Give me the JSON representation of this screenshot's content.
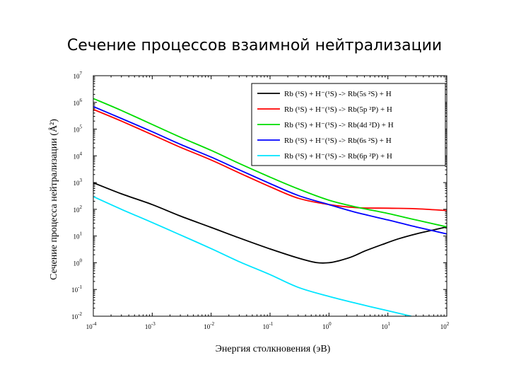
{
  "slide": {
    "title": "Сечение процессов взаимной нейтрализации"
  },
  "chart_data": {
    "type": "line",
    "xlabel": "Энергия столкновения (эВ)",
    "ylabel": "Сечение процесса нейтрализации (Å²)",
    "x_scale": "log",
    "y_scale": "log",
    "xlim": [
      0.0001,
      100
    ],
    "ylim": [
      0.01,
      10000000
    ],
    "x_ticks": [
      {
        "value": 0.0001,
        "mant": "10",
        "exp": "-4"
      },
      {
        "value": 0.001,
        "mant": "10",
        "exp": "-3"
      },
      {
        "value": 0.01,
        "mant": "10",
        "exp": "-2"
      },
      {
        "value": 0.1,
        "mant": "10",
        "exp": "-1"
      },
      {
        "value": 1,
        "mant": "10",
        "exp": "0"
      },
      {
        "value": 10,
        "mant": "10",
        "exp": "1"
      },
      {
        "value": 100,
        "mant": "10",
        "exp": "2"
      }
    ],
    "y_ticks": [
      {
        "value": 0.01,
        "mant": "10",
        "exp": "-2"
      },
      {
        "value": 0.1,
        "mant": "10",
        "exp": "-1"
      },
      {
        "value": 1,
        "mant": "10",
        "exp": "0"
      },
      {
        "value": 10,
        "mant": "10",
        "exp": "1"
      },
      {
        "value": 100,
        "mant": "10",
        "exp": "2"
      },
      {
        "value": 1000,
        "mant": "10",
        "exp": "3"
      },
      {
        "value": 10000,
        "mant": "10",
        "exp": "4"
      },
      {
        "value": 100000,
        "mant": "10",
        "exp": "5"
      },
      {
        "value": 1000000,
        "mant": "10",
        "exp": "6"
      },
      {
        "value": 10000000,
        "mant": "10",
        "exp": "7"
      }
    ],
    "legend_position": "top-right",
    "series": [
      {
        "name": "Rb (¹S) + H⁻(¹S) -> Rb(5s ²S) + H",
        "color": "#000000",
        "x": [
          0.0001,
          0.0003,
          0.001,
          0.003,
          0.01,
          0.03,
          0.1,
          0.3,
          0.6,
          1,
          1.5,
          2.5,
          4,
          8,
          15,
          30,
          60,
          100
        ],
        "y": [
          990,
          380,
          150,
          56,
          21,
          8.5,
          3.3,
          1.5,
          1.02,
          1.0,
          1.2,
          1.7,
          2.7,
          4.8,
          7.8,
          12,
          17,
          22
        ]
      },
      {
        "name": "Rb (¹S) + H⁻(¹S) -> Rb(5p ²P) + H",
        "color": "#ff0000",
        "x": [
          0.0001,
          0.0003,
          0.001,
          0.003,
          0.01,
          0.03,
          0.1,
          0.3,
          1,
          3,
          10,
          30,
          100
        ],
        "y": [
          550000,
          200000,
          62000,
          21000,
          7000,
          2300,
          700,
          260,
          150,
          115,
          110,
          105,
          90
        ]
      },
      {
        "name": "Rb (¹S) + H⁻(¹S) -> Rb(4d ²D) + H",
        "color": "#00dd00",
        "x": [
          0.0001,
          0.0003,
          0.001,
          0.003,
          0.01,
          0.03,
          0.1,
          0.3,
          1,
          3,
          10,
          30,
          100
        ],
        "y": [
          1400000,
          500000,
          150000,
          50000,
          16000,
          5200,
          1600,
          580,
          220,
          120,
          70,
          40,
          22
        ]
      },
      {
        "name": "Rb (¹S) + H⁻(¹S) -> Rb(6s ²S) + H",
        "color": "#0000ff",
        "x": [
          0.0001,
          0.0003,
          0.001,
          0.003,
          0.01,
          0.03,
          0.1,
          0.3,
          1,
          3,
          10,
          30,
          100
        ],
        "y": [
          700000,
          250000,
          80000,
          27000,
          9000,
          3000,
          920,
          330,
          150,
          75,
          40,
          22,
          12
        ]
      },
      {
        "name": "Rb (¹S) + H⁻(¹S) -> Rb(6p ²P) + H",
        "color": "#00e5ff",
        "x": [
          0.0001,
          0.0003,
          0.001,
          0.003,
          0.01,
          0.03,
          0.1,
          0.3,
          1,
          3,
          10,
          25
        ],
        "y": [
          300,
          100,
          32,
          11,
          3.4,
          1.1,
          0.36,
          0.12,
          0.055,
          0.03,
          0.016,
          0.01
        ]
      }
    ]
  }
}
